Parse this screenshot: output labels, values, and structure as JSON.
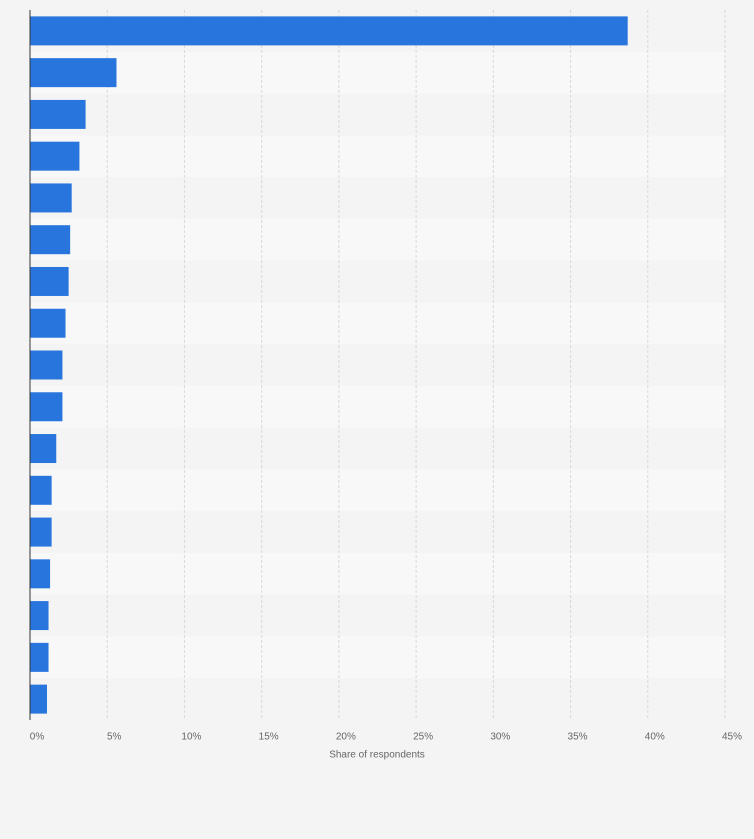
{
  "chart_data": {
    "type": "hbar",
    "x_label": "Share of respondents",
    "categories": [
      null,
      null,
      null,
      null,
      null,
      null,
      null,
      null,
      null,
      null,
      null,
      null,
      null,
      null,
      null,
      null,
      null
    ],
    "values": [
      38.7,
      5.6,
      3.6,
      3.2,
      2.7,
      2.6,
      2.5,
      2.3,
      2.1,
      2.1,
      1.7,
      1.4,
      1.4,
      1.3,
      1.2,
      1.2,
      1.1
    ],
    "color": "#2876dd",
    "xlim": [
      0,
      45
    ],
    "xticks": [
      {
        "value": 0,
        "label": "0%"
      },
      {
        "value": 5,
        "label": "5%"
      },
      {
        "value": 10,
        "label": "10%"
      },
      {
        "value": 15,
        "label": "15%"
      },
      {
        "value": 20,
        "label": "20%"
      },
      {
        "value": 25,
        "label": "25%"
      },
      {
        "value": 30,
        "label": "30%"
      },
      {
        "value": 35,
        "label": "35%"
      },
      {
        "value": 40,
        "label": "40%"
      },
      {
        "value": 45,
        "label": "45%"
      }
    ],
    "grid": true
  }
}
